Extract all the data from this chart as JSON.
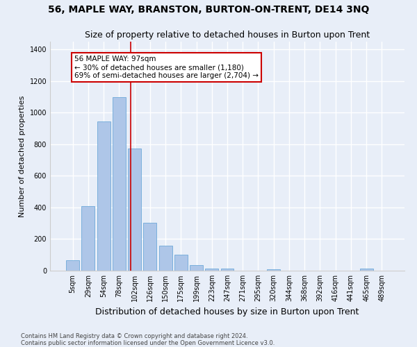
{
  "title": "56, MAPLE WAY, BRANSTON, BURTON-ON-TRENT, DE14 3NQ",
  "subtitle": "Size of property relative to detached houses in Burton upon Trent",
  "xlabel": "Distribution of detached houses by size in Burton upon Trent",
  "ylabel": "Number of detached properties",
  "footnote1": "Contains HM Land Registry data © Crown copyright and database right 2024.",
  "footnote2": "Contains public sector information licensed under the Open Government Licence v3.0.",
  "bar_labels": [
    "5sqm",
    "29sqm",
    "54sqm",
    "78sqm",
    "102sqm",
    "126sqm",
    "150sqm",
    "175sqm",
    "199sqm",
    "223sqm",
    "247sqm",
    "271sqm",
    "295sqm",
    "320sqm",
    "344sqm",
    "368sqm",
    "392sqm",
    "416sqm",
    "441sqm",
    "465sqm",
    "489sqm"
  ],
  "bar_values": [
    65,
    410,
    945,
    1100,
    775,
    305,
    160,
    100,
    35,
    15,
    15,
    0,
    0,
    10,
    0,
    0,
    0,
    0,
    0,
    15,
    0
  ],
  "bar_color": "#aec6e8",
  "bar_edge_color": "#5a9fd4",
  "property_label": "56 MAPLE WAY: 97sqm",
  "annotation_line1": "← 30% of detached houses are smaller (1,180)",
  "annotation_line2": "69% of semi-detached houses are larger (2,704) →",
  "vline_color": "#cc0000",
  "vline_x": 3.75,
  "ylim": [
    0,
    1450
  ],
  "yticks": [
    0,
    200,
    400,
    600,
    800,
    1000,
    1200,
    1400
  ],
  "background_color": "#e8eef8",
  "grid_color": "#ffffff",
  "title_fontsize": 10,
  "subtitle_fontsize": 9,
  "xlabel_fontsize": 9,
  "ylabel_fontsize": 8,
  "tick_fontsize": 7,
  "annotation_fontsize": 7.5,
  "footnote_fontsize": 6
}
